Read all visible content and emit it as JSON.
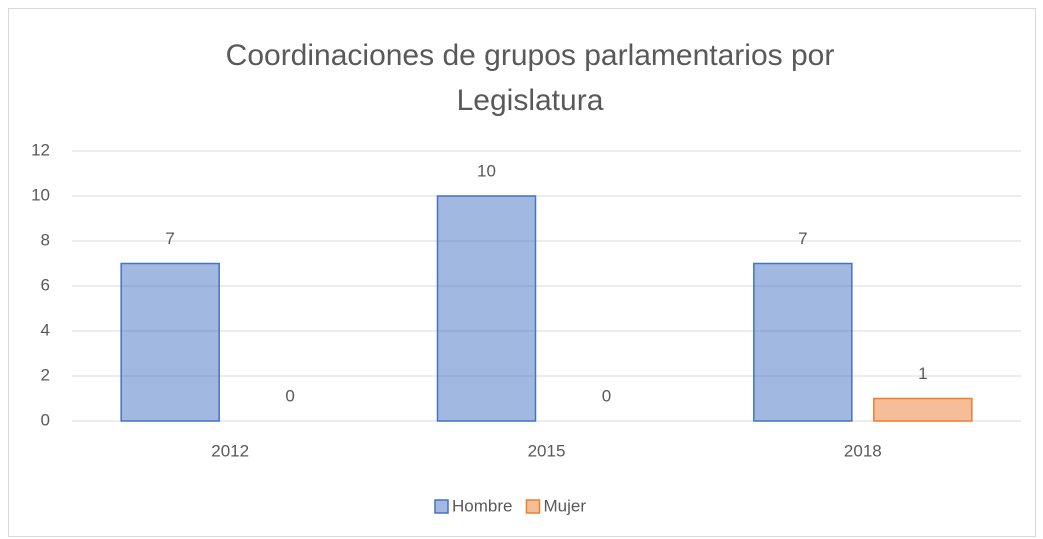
{
  "chart_data": {
    "type": "bar",
    "title": [
      "Coordinaciones de grupos parlamentarios por",
      "Legislatura"
    ],
    "categories": [
      "2012",
      "2015",
      "2018"
    ],
    "series": [
      {
        "name": "Hombre",
        "color": "#4472c4",
        "values": [
          7,
          10,
          7
        ]
      },
      {
        "name": "Mujer",
        "color": "#ed7d31",
        "values": [
          0,
          0,
          1
        ]
      }
    ],
    "ylim": [
      0,
      12
    ],
    "yticks": [
      0,
      2,
      4,
      6,
      8,
      10,
      12
    ],
    "grid": true,
    "legend": "bottom"
  }
}
